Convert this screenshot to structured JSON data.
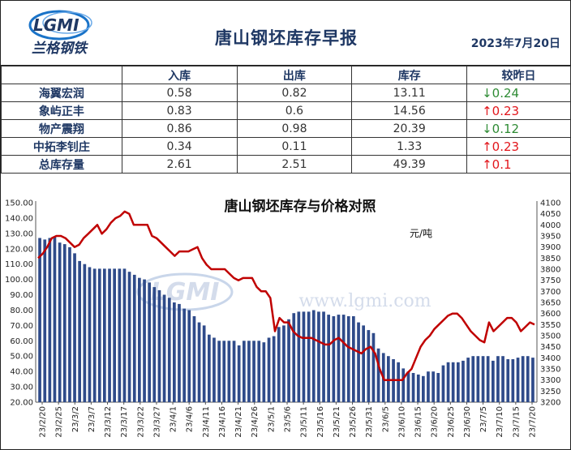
{
  "header": {
    "title": "唐山钢坯库存早报",
    "date": "2023年7月20日",
    "logo_text": "LGMI",
    "logo_subtitle": "兰格钢铁"
  },
  "table": {
    "columns": [
      "",
      "入库",
      "出库",
      "库存",
      "较昨日"
    ],
    "rows": [
      {
        "name": "海翼宏润",
        "in": "0.58",
        "out": "0.82",
        "stock": "13.11",
        "arrow": "↓",
        "change": "0.24",
        "dir": "down"
      },
      {
        "name": "象屿正丰",
        "in": "0.83",
        "out": "0.6",
        "stock": "14.56",
        "arrow": "↑",
        "change": "0.23",
        "dir": "up"
      },
      {
        "name": "物产震翔",
        "in": "0.86",
        "out": "0.98",
        "stock": "20.39",
        "arrow": "↓",
        "change": "0.12",
        "dir": "down"
      },
      {
        "name": "中拓李钊庄",
        "in": "0.34",
        "out": "0.11",
        "stock": "1.33",
        "arrow": "↑",
        "change": "0.23",
        "dir": "up"
      },
      {
        "name": "总库存量",
        "in": "2.61",
        "out": "2.51",
        "stock": "49.39",
        "arrow": "↑",
        "change": "0.1",
        "dir": "up"
      }
    ]
  },
  "chart_data": {
    "type": "bar+line",
    "title": "唐山钢坯库存与价格对照",
    "unit_label": "元/吨",
    "watermark_url": "www.lgmi.com",
    "left_axis": {
      "min": 20,
      "max": 150,
      "step": 10
    },
    "right_axis": {
      "min": 3200,
      "max": 4100,
      "step": 50
    },
    "x_tick_labels": [
      "23/2/20",
      "23/2/25",
      "23/3/2",
      "23/3/7",
      "23/3/12",
      "23/3/17",
      "23/3/22",
      "23/3/27",
      "23/4/1",
      "23/4/6",
      "23/4/11",
      "23/4/16",
      "23/4/21",
      "23/4/26",
      "23/5/1",
      "23/5/6",
      "23/5/11",
      "23/5/16",
      "23/5/21",
      "23/5/26",
      "23/5/31",
      "23/6/5",
      "23/6/10",
      "23/6/15",
      "23/6/20",
      "23/6/25",
      "23/6/30",
      "23/7/5",
      "23/7/10",
      "23/7/15",
      "23/7/20"
    ],
    "series": [
      {
        "kind": "bar",
        "color": "#2f4b8a",
        "values": [
          127,
          126,
          127,
          128,
          124,
          123,
          121,
          117,
          112,
          110,
          108,
          107,
          107,
          107,
          107,
          107,
          107,
          107,
          105,
          103,
          101,
          100,
          98,
          95,
          93,
          90,
          88,
          85,
          84,
          81,
          80,
          76,
          72,
          70,
          64,
          62,
          60,
          60,
          60,
          60,
          57,
          60,
          60,
          60,
          60,
          59,
          62,
          63,
          69,
          70,
          74,
          78,
          79,
          79,
          79,
          80,
          79,
          79,
          77,
          76,
          77,
          77,
          76,
          76,
          72,
          70,
          67,
          65,
          55,
          52,
          50,
          48,
          46,
          42,
          40,
          39,
          38,
          37,
          40,
          40,
          39,
          44,
          46,
          46,
          46,
          47,
          49,
          50,
          50,
          50,
          50,
          47,
          50,
          50,
          48,
          48,
          49,
          50,
          50,
          49
        ]
      },
      {
        "kind": "line",
        "color": "#c00000",
        "values": [
          3850,
          3870,
          3900,
          3940,
          3950,
          3950,
          3940,
          3920,
          3900,
          3910,
          3940,
          3960,
          3980,
          4000,
          3960,
          3980,
          4010,
          4030,
          4040,
          4060,
          4050,
          4000,
          4000,
          4000,
          4000,
          3950,
          3940,
          3920,
          3900,
          3880,
          3860,
          3880,
          3880,
          3880,
          3890,
          3900,
          3850,
          3820,
          3800,
          3800,
          3800,
          3800,
          3780,
          3760,
          3750,
          3760,
          3760,
          3760,
          3720,
          3700,
          3700,
          3670,
          3520,
          3580,
          3560,
          3560,
          3520,
          3500,
          3490,
          3490,
          3490,
          3480,
          3470,
          3460,
          3460,
          3480,
          3490,
          3470,
          3450,
          3440,
          3430,
          3420,
          3440,
          3450,
          3420,
          3350,
          3300,
          3300,
          3300,
          3300,
          3300,
          3330,
          3350,
          3400,
          3450,
          3480,
          3500,
          3530,
          3550,
          3570,
          3590,
          3600,
          3600,
          3580,
          3550,
          3520,
          3500,
          3480,
          3470,
          3560,
          3520,
          3540,
          3560,
          3580,
          3580,
          3560,
          3520,
          3540,
          3560,
          3550
        ]
      }
    ]
  }
}
